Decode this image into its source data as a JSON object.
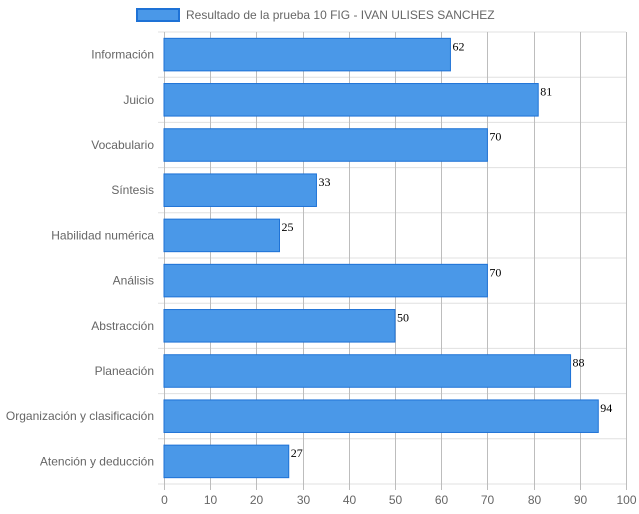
{
  "chart_data": {
    "type": "bar",
    "orientation": "horizontal",
    "categories": [
      "Información",
      "Juicio",
      "Vocabulario",
      "Síntesis",
      "Habilidad numérica",
      "Análisis",
      "Abstracción",
      "Planeación",
      "Organización y clasificación",
      "Atención y deducción"
    ],
    "series": [
      {
        "name": "Resultado de la prueba 10 FIG - IVAN ULISES SANCHEZ",
        "values": [
          62,
          81,
          70,
          33,
          25,
          70,
          50,
          88,
          94,
          27
        ]
      }
    ],
    "xlim": [
      0,
      100
    ],
    "x_ticks": [
      "0",
      "10",
      "20",
      "30",
      "40",
      "50",
      "60",
      "70",
      "80",
      "90",
      "100"
    ],
    "data_labels": [
      "62",
      "81",
      "70",
      "33",
      "25",
      "70",
      "50",
      "88",
      "94",
      "27"
    ],
    "legend_position": "top",
    "grid": true,
    "colors": {
      "bar_fill": "#4a98e8",
      "bar_border": "#1e72d6",
      "grid": "#e0e0e0",
      "grid_vertical": "#bdbdbd"
    }
  }
}
